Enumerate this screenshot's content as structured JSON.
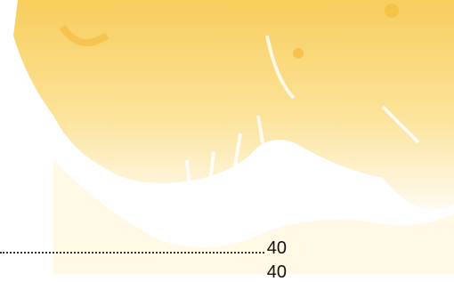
{
  "toc": {
    "entries": [
      {
        "page": "40"
      },
      {
        "page": "40"
      }
    ]
  }
}
